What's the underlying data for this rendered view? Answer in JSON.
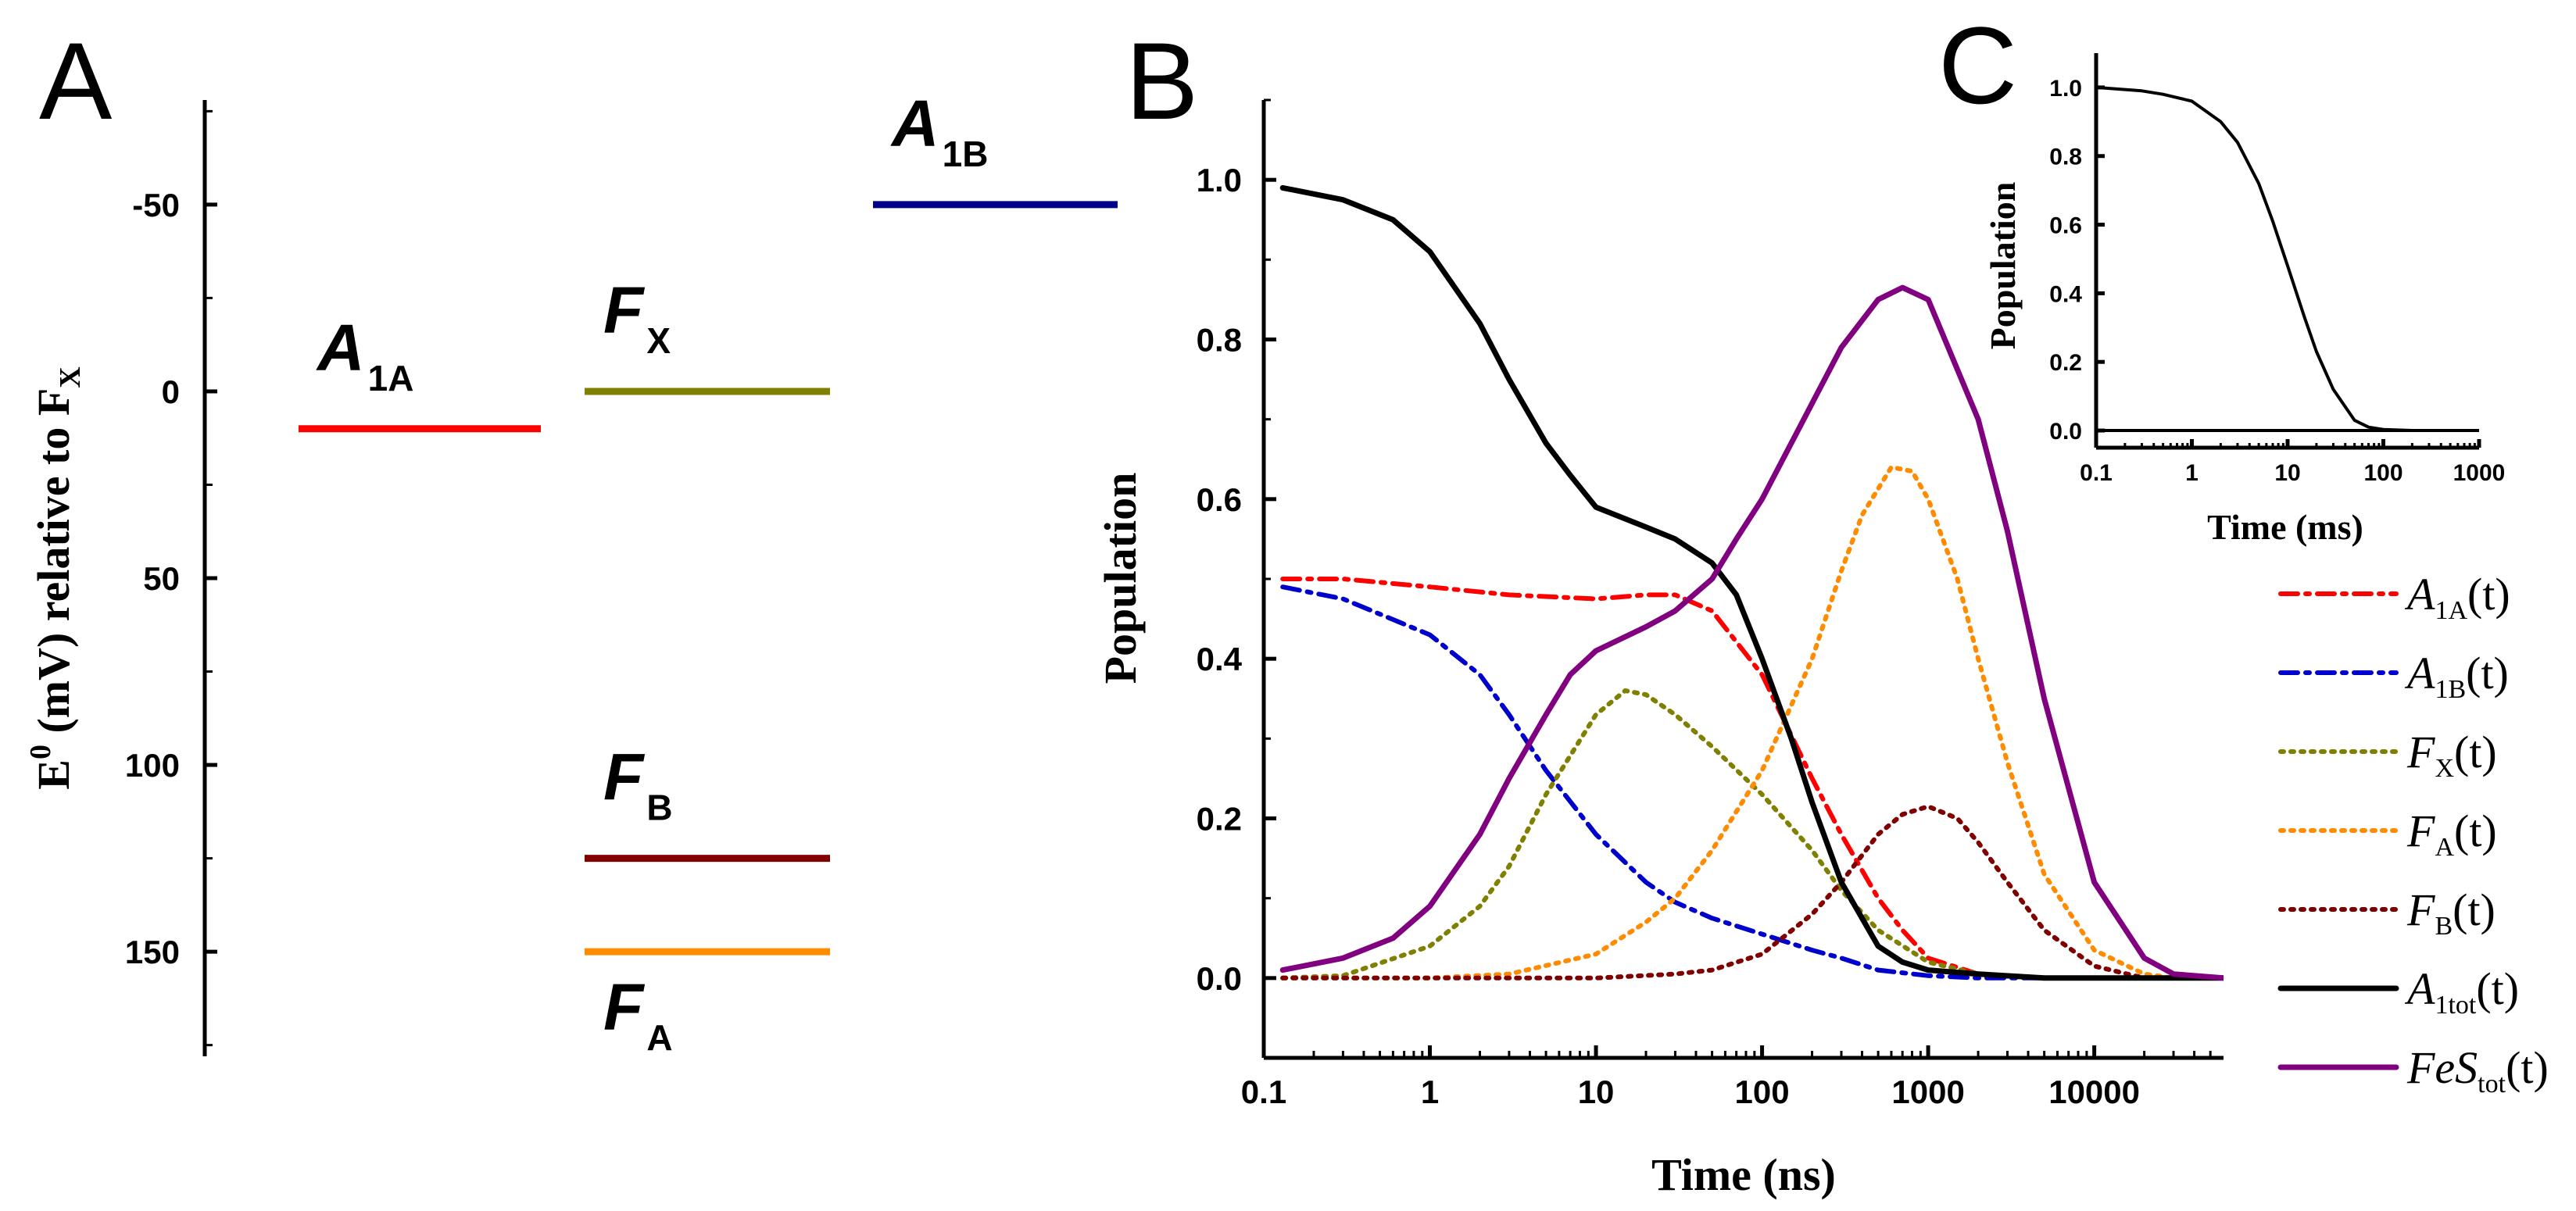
{
  "chart_data": [
    {
      "panel": "A",
      "type": "energy-level-diagram",
      "ylabel": "E0 (mV) relative to FX",
      "ylabel_parts": {
        "e": "E",
        "sup": "0",
        "mid": " (mV) relative to F",
        "sub": "X"
      },
      "ylim": [
        178,
        -78
      ],
      "y_ticks": [
        -50,
        0,
        50,
        100,
        150
      ],
      "levels": [
        {
          "name": "A1A",
          "main": "A",
          "sub": "1A",
          "value": 10,
          "color": "#ff0000",
          "column": 1,
          "label_side": "above"
        },
        {
          "name": "FX",
          "main": "F",
          "sub": "X",
          "value": 0,
          "color": "#808000",
          "column": 2,
          "label_side": "above"
        },
        {
          "name": "A1B",
          "main": "A",
          "sub": "1B",
          "value": -50,
          "color": "#00008b",
          "column": 3,
          "label_side": "above"
        },
        {
          "name": "FB",
          "main": "F",
          "sub": "B",
          "value": 125,
          "color": "#800000",
          "column": 2,
          "label_side": "above"
        },
        {
          "name": "FA",
          "main": "F",
          "sub": "A",
          "value": 150,
          "color": "#ff8c00",
          "column": 2,
          "label_side": "below"
        }
      ]
    },
    {
      "panel": "B",
      "type": "line",
      "x_scale": "log",
      "xlabel": "Time (ns)",
      "ylabel": "Population",
      "xlim": [
        0.1,
        60000
      ],
      "ylim": [
        -0.1,
        1.1
      ],
      "x_ticks": [
        0.1,
        1,
        10,
        100,
        1000,
        10000
      ],
      "x_tick_labels": [
        "0.1",
        "1",
        "10",
        "100",
        "1000",
        "10000"
      ],
      "y_ticks": [
        0.0,
        0.2,
        0.4,
        0.6,
        0.8,
        1.0
      ],
      "y_tick_labels": [
        "0.0",
        "0.2",
        "0.4",
        "0.6",
        "0.8",
        "1.0"
      ],
      "series": [
        {
          "name": "A1A(t)",
          "main": "A",
          "sub": "1A",
          "color": "#ff0000",
          "style": "dashdot",
          "x": [
            0.13,
            0.3,
            1,
            3,
            10,
            20,
            30,
            50,
            100,
            200,
            300,
            500,
            700,
            1000,
            2000,
            5000,
            60000
          ],
          "y": [
            0.5,
            0.5,
            0.49,
            0.48,
            0.475,
            0.48,
            0.48,
            0.46,
            0.38,
            0.25,
            0.18,
            0.1,
            0.06,
            0.025,
            0.005,
            0.0,
            0.0
          ]
        },
        {
          "name": "A1B(t)",
          "main": "A",
          "sub": "1B",
          "color": "#0000cd",
          "style": "dashdot",
          "x": [
            0.13,
            0.3,
            1,
            2,
            3,
            5,
            10,
            20,
            30,
            50,
            100,
            200,
            300,
            500,
            1000,
            2000,
            60000
          ],
          "y": [
            0.49,
            0.475,
            0.43,
            0.38,
            0.33,
            0.26,
            0.18,
            0.12,
            0.095,
            0.075,
            0.055,
            0.035,
            0.025,
            0.01,
            0.003,
            0.0,
            0.0
          ]
        },
        {
          "name": "FX(t)",
          "main": "F",
          "sub": "X",
          "color": "#808000",
          "style": "dot",
          "x": [
            0.13,
            0.3,
            1,
            2,
            3,
            5,
            10,
            15,
            20,
            30,
            50,
            100,
            200,
            300,
            500,
            1000,
            2000,
            5000,
            60000
          ],
          "y": [
            0.0,
            0.003,
            0.04,
            0.09,
            0.14,
            0.23,
            0.33,
            0.36,
            0.355,
            0.33,
            0.29,
            0.23,
            0.16,
            0.11,
            0.06,
            0.02,
            0.005,
            0.0,
            0.0
          ]
        },
        {
          "name": "FA(t)",
          "main": "F",
          "sub": "A",
          "color": "#ff8c00",
          "style": "dot",
          "x": [
            0.13,
            1,
            3,
            10,
            20,
            30,
            50,
            100,
            200,
            300,
            400,
            600,
            800,
            1000,
            1500,
            2000,
            3000,
            5000,
            10000,
            20000,
            30000,
            60000
          ],
          "y": [
            0.0,
            0.0,
            0.005,
            0.03,
            0.07,
            0.1,
            0.16,
            0.26,
            0.4,
            0.51,
            0.58,
            0.64,
            0.635,
            0.6,
            0.5,
            0.4,
            0.27,
            0.13,
            0.035,
            0.005,
            0.0,
            0.0
          ]
        },
        {
          "name": "FB(t)",
          "main": "F",
          "sub": "B",
          "color": "#800000",
          "style": "dot",
          "x": [
            0.13,
            10,
            30,
            50,
            100,
            200,
            300,
            500,
            700,
            1000,
            1500,
            2000,
            3000,
            5000,
            10000,
            20000,
            60000
          ],
          "y": [
            0.0,
            0.0,
            0.005,
            0.01,
            0.03,
            0.08,
            0.12,
            0.18,
            0.205,
            0.215,
            0.2,
            0.17,
            0.12,
            0.06,
            0.015,
            0.0,
            0.0
          ]
        },
        {
          "name": "A1tot(t)",
          "main": "A",
          "sub": "1tot",
          "color": "#000000",
          "style": "solid",
          "x": [
            0.13,
            0.3,
            0.6,
            1,
            2,
            3,
            5,
            7,
            10,
            20,
            30,
            50,
            70,
            100,
            150,
            200,
            300,
            500,
            700,
            1000,
            2000,
            5000,
            60000
          ],
          "y": [
            0.99,
            0.975,
            0.95,
            0.91,
            0.82,
            0.75,
            0.67,
            0.63,
            0.59,
            0.565,
            0.55,
            0.52,
            0.48,
            0.4,
            0.3,
            0.22,
            0.12,
            0.04,
            0.02,
            0.01,
            0.005,
            0.0,
            0.0
          ]
        },
        {
          "name": "FeStot(t)",
          "main": "FeS",
          "sub": "tot",
          "color": "#800080",
          "style": "solid",
          "x": [
            0.13,
            0.3,
            0.6,
            1,
            2,
            3,
            5,
            7,
            10,
            20,
            30,
            50,
            70,
            100,
            200,
            300,
            500,
            700,
            1000,
            2000,
            3000,
            5000,
            10000,
            20000,
            30000,
            60000
          ],
          "y": [
            0.01,
            0.025,
            0.05,
            0.09,
            0.18,
            0.25,
            0.33,
            0.38,
            0.41,
            0.44,
            0.46,
            0.5,
            0.55,
            0.6,
            0.72,
            0.79,
            0.85,
            0.865,
            0.85,
            0.7,
            0.56,
            0.35,
            0.12,
            0.025,
            0.005,
            0.0
          ]
        }
      ]
    },
    {
      "panel": "C",
      "type": "line",
      "x_scale": "log",
      "xlabel": "Time (ms)",
      "ylabel": "Population",
      "xlim": [
        0.1,
        1000
      ],
      "ylim": [
        -0.05,
        1.1
      ],
      "x_ticks": [
        0.1,
        1,
        10,
        100,
        1000
      ],
      "x_tick_labels": [
        "0.1",
        "1",
        "10",
        "100",
        "1000"
      ],
      "y_ticks": [
        0.0,
        0.2,
        0.4,
        0.6,
        0.8,
        1.0
      ],
      "y_tick_labels": [
        "0.0",
        "0.2",
        "0.4",
        "0.6",
        "0.8",
        "1.0"
      ],
      "series": [
        {
          "name": "Population",
          "color": "#000000",
          "style": "solid",
          "x": [
            0.1,
            0.3,
            0.5,
            1,
            2,
            3,
            5,
            7,
            10,
            15,
            20,
            30,
            50,
            70,
            100,
            200,
            1000
          ],
          "y": [
            1.0,
            0.99,
            0.98,
            0.96,
            0.9,
            0.84,
            0.72,
            0.61,
            0.48,
            0.33,
            0.23,
            0.12,
            0.03,
            0.01,
            0.003,
            0.0,
            0.0
          ]
        },
        {
          "name": "zero-line",
          "color": "#000000",
          "style": "solid",
          "x": [
            0.1,
            1000
          ],
          "y": [
            0.0,
            0.0
          ]
        }
      ]
    }
  ],
  "panel_letters": {
    "a": "A",
    "b": "B",
    "c": "C"
  },
  "legend_suffix": "(t)"
}
